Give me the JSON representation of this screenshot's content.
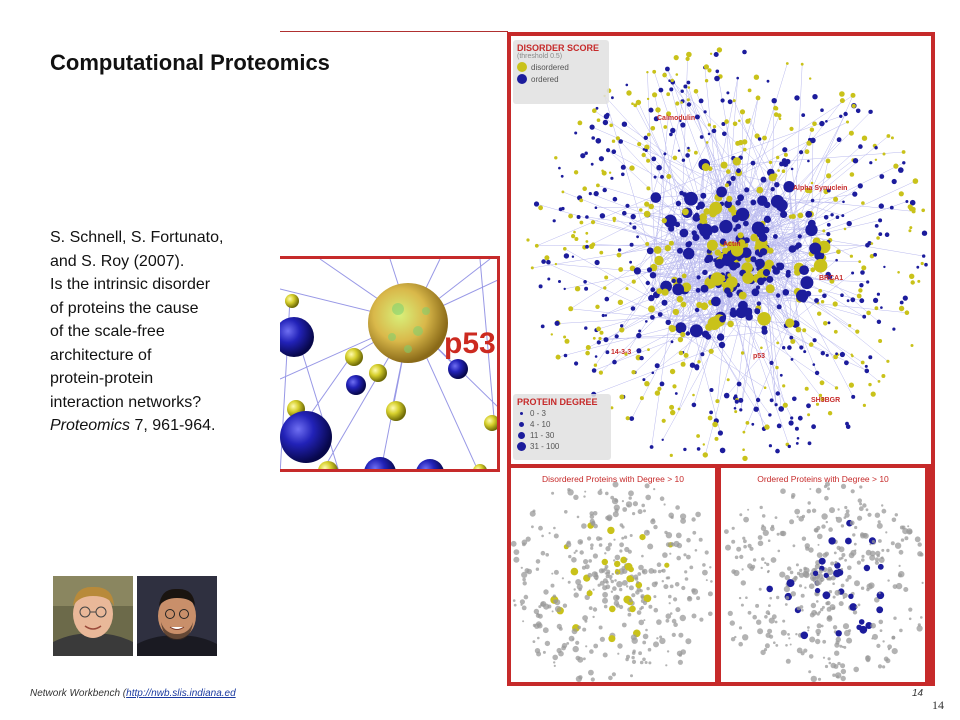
{
  "slide": {
    "title": "Computational Proteomics",
    "citation": {
      "lines": [
        "S. Schnell, S. Fortunato,",
        "and S. Roy (2007).",
        "Is the intrinsic disorder",
        "of proteins the cause",
        "of the scale-free",
        "architecture of",
        "protein-protein",
        "interaction networks?"
      ],
      "journal": "Proteomics",
      "volume_pages": " 7, 961-964."
    },
    "footer": {
      "prefix": "Network Workbench (",
      "link": "http://nwb.slis.indiana.ed",
      "page_small": "14",
      "page_big": "14"
    }
  },
  "figure": {
    "zoom_label": "p53",
    "legend_disorder": {
      "title": "DISORDER SCORE",
      "subtitle": "(threshold 0.5)",
      "items": [
        "disordered",
        "ordered"
      ]
    },
    "legend_degree": {
      "title": "PROTEIN DEGREE",
      "items": [
        "0 - 3",
        "4 - 10",
        "11 - 30",
        "31 - 100"
      ]
    },
    "node_labels": [
      "Calmodulin",
      "Alpha Synuclein",
      "Actin",
      "BRCA1",
      "14-3-3",
      "p53",
      "SH3BGR"
    ],
    "sub_titles": [
      "Disordered Proteins with Degree > 10",
      "Ordered Proteins with Degree > 10"
    ],
    "colors": {
      "disordered": "#c9c21a",
      "ordered": "#1c1c9c",
      "frame": "#c62a2a",
      "edge": "#7f7fe0",
      "gray_node": "#9a9a9a"
    }
  }
}
